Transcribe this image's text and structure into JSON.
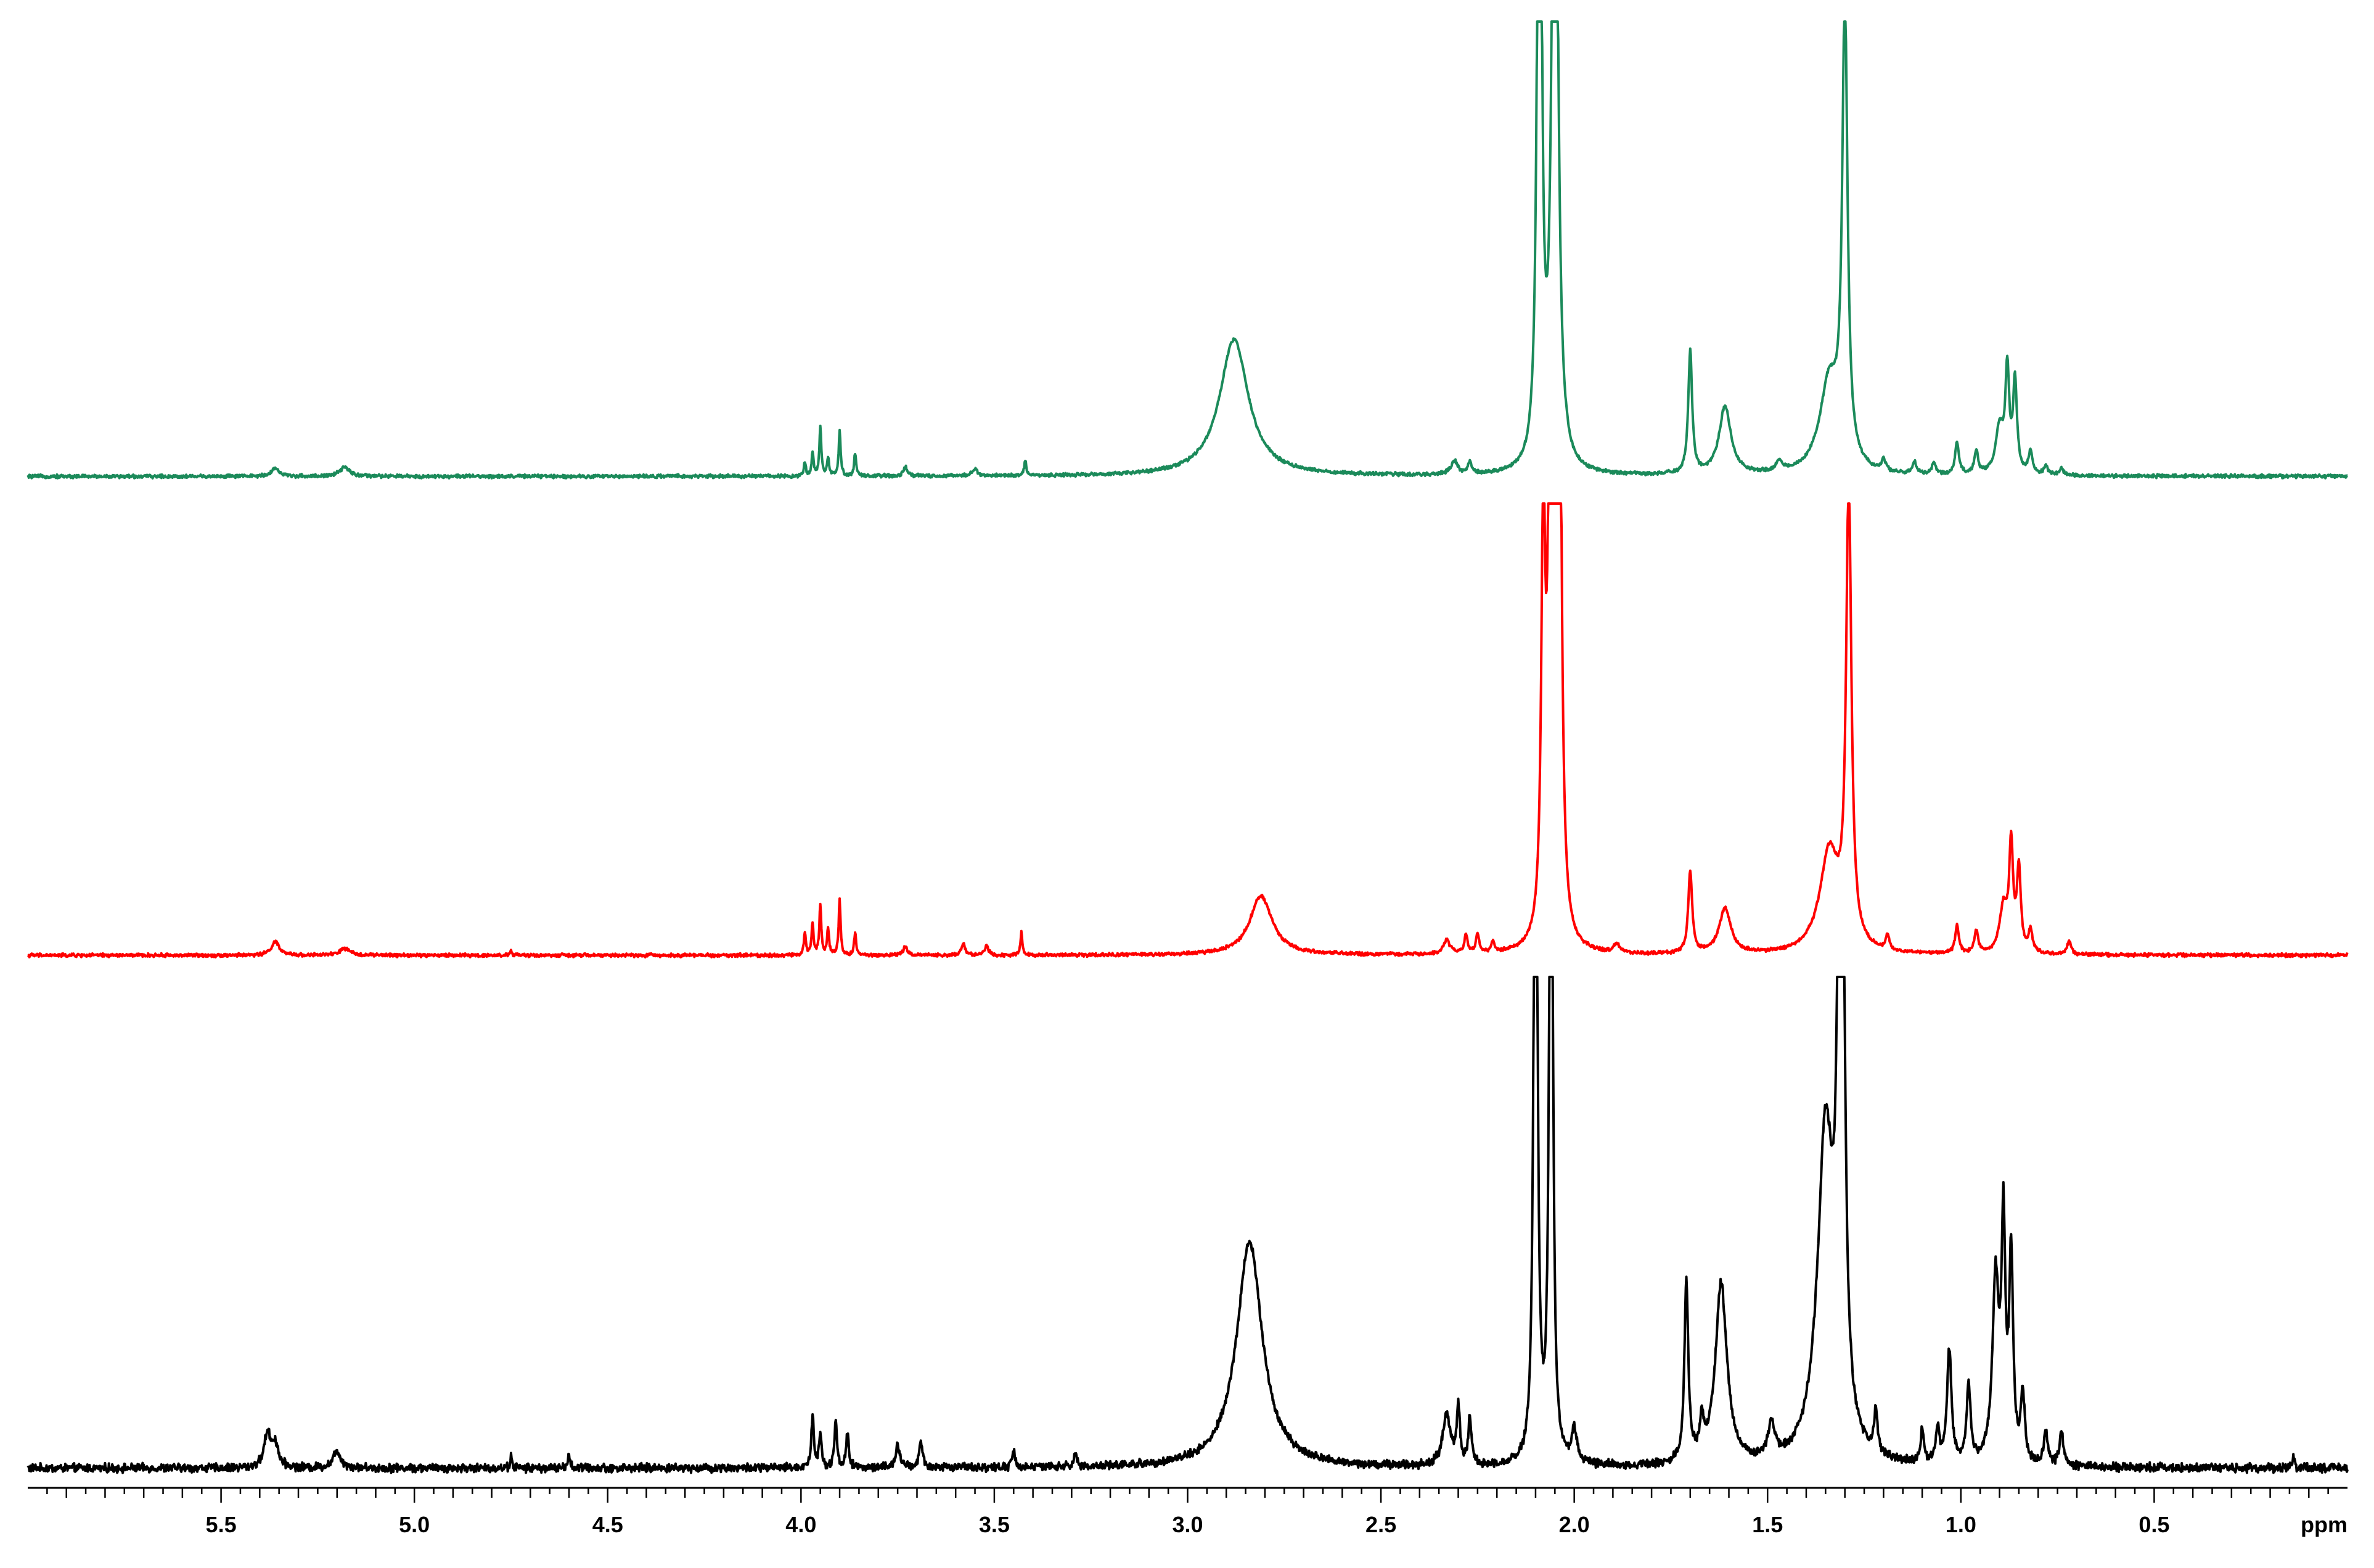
{
  "chart_data": {
    "type": "line",
    "title": "",
    "xlabel": "ppm",
    "ylabel": "",
    "x_reversed": true,
    "xlim": [
      6.0,
      0.0
    ],
    "x_ticks": [
      5.5,
      5.0,
      4.5,
      4.0,
      3.5,
      3.0,
      2.5,
      2.0,
      1.5,
      1.0,
      0.5
    ],
    "x_tick_labels": [
      "5.5",
      "5.0",
      "4.5",
      "4.0",
      "3.5",
      "3.0",
      "2.5",
      "2.0",
      "1.5",
      "1.0",
      "0.5"
    ],
    "minor_tick_step": 0.05,
    "grid": false,
    "legend": "none",
    "series": [
      {
        "color": "#1b8a5a",
        "stack_index": 2,
        "peaks": [
          {
            "ppm": 5.36,
            "height": 0.018,
            "width": 0.012
          },
          {
            "ppm": 5.18,
            "height": 0.02,
            "width": 0.015
          },
          {
            "ppm": 3.99,
            "height": 0.03,
            "width": 0.003
          },
          {
            "ppm": 3.97,
            "height": 0.05,
            "width": 0.003
          },
          {
            "ppm": 3.95,
            "height": 0.11,
            "width": 0.003
          },
          {
            "ppm": 3.93,
            "height": 0.04,
            "width": 0.003
          },
          {
            "ppm": 3.9,
            "height": 0.1,
            "width": 0.003
          },
          {
            "ppm": 3.86,
            "height": 0.05,
            "width": 0.003
          },
          {
            "ppm": 3.73,
            "height": 0.02,
            "width": 0.006
          },
          {
            "ppm": 3.55,
            "height": 0.015,
            "width": 0.008
          },
          {
            "ppm": 3.42,
            "height": 0.035,
            "width": 0.003
          },
          {
            "ppm": 2.88,
            "height": 0.3,
            "width": 0.045
          },
          {
            "ppm": 2.31,
            "height": 0.03,
            "width": 0.01
          },
          {
            "ppm": 2.27,
            "height": 0.025,
            "width": 0.006
          },
          {
            "ppm": 2.09,
            "height": 2.0,
            "width": 0.006
          },
          {
            "ppm": 2.05,
            "height": 2.0,
            "width": 0.008
          },
          {
            "ppm": 1.7,
            "height": 0.27,
            "width": 0.006
          },
          {
            "ppm": 1.61,
            "height": 0.15,
            "width": 0.018
          },
          {
            "ppm": 1.47,
            "height": 0.02,
            "width": 0.01
          },
          {
            "ppm": 1.34,
            "height": 0.2,
            "width": 0.03
          },
          {
            "ppm": 1.3,
            "height": 1.0,
            "width": 0.008
          },
          {
            "ppm": 1.2,
            "height": 0.025,
            "width": 0.006
          },
          {
            "ppm": 1.12,
            "height": 0.025,
            "width": 0.006
          },
          {
            "ppm": 1.07,
            "height": 0.025,
            "width": 0.006
          },
          {
            "ppm": 1.01,
            "height": 0.07,
            "width": 0.006
          },
          {
            "ppm": 0.96,
            "height": 0.05,
            "width": 0.006
          },
          {
            "ppm": 0.9,
            "height": 0.1,
            "width": 0.012
          },
          {
            "ppm": 0.88,
            "height": 0.22,
            "width": 0.006
          },
          {
            "ppm": 0.86,
            "height": 0.2,
            "width": 0.006
          },
          {
            "ppm": 0.82,
            "height": 0.05,
            "width": 0.006
          },
          {
            "ppm": 0.78,
            "height": 0.02,
            "width": 0.006
          },
          {
            "ppm": 0.74,
            "height": 0.015,
            "width": 0.006
          }
        ]
      },
      {
        "color": "#ff0000",
        "stack_index": 1,
        "peaks": [
          {
            "ppm": 5.36,
            "height": 0.03,
            "width": 0.012
          },
          {
            "ppm": 5.18,
            "height": 0.015,
            "width": 0.015
          },
          {
            "ppm": 4.75,
            "height": 0.01,
            "width": 0.003
          },
          {
            "ppm": 3.99,
            "height": 0.05,
            "width": 0.003
          },
          {
            "ppm": 3.97,
            "height": 0.07,
            "width": 0.003
          },
          {
            "ppm": 3.95,
            "height": 0.11,
            "width": 0.003
          },
          {
            "ppm": 3.93,
            "height": 0.06,
            "width": 0.003
          },
          {
            "ppm": 3.9,
            "height": 0.12,
            "width": 0.003
          },
          {
            "ppm": 3.86,
            "height": 0.05,
            "width": 0.003
          },
          {
            "ppm": 3.73,
            "height": 0.02,
            "width": 0.006
          },
          {
            "ppm": 3.58,
            "height": 0.025,
            "width": 0.006
          },
          {
            "ppm": 3.52,
            "height": 0.02,
            "width": 0.006
          },
          {
            "ppm": 3.43,
            "height": 0.05,
            "width": 0.003
          },
          {
            "ppm": 2.81,
            "height": 0.13,
            "width": 0.035
          },
          {
            "ppm": 2.33,
            "height": 0.03,
            "width": 0.01
          },
          {
            "ppm": 2.28,
            "height": 0.04,
            "width": 0.005
          },
          {
            "ppm": 2.25,
            "height": 0.04,
            "width": 0.005
          },
          {
            "ppm": 2.21,
            "height": 0.025,
            "width": 0.005
          },
          {
            "ppm": 2.08,
            "height": 0.9,
            "width": 0.006
          },
          {
            "ppm": 2.06,
            "height": 2.0,
            "width": 0.006
          },
          {
            "ppm": 2.04,
            "height": 2.0,
            "width": 0.006
          },
          {
            "ppm": 1.89,
            "height": 0.02,
            "width": 0.008
          },
          {
            "ppm": 1.7,
            "height": 0.18,
            "width": 0.006
          },
          {
            "ppm": 1.61,
            "height": 0.1,
            "width": 0.018
          },
          {
            "ppm": 1.34,
            "height": 0.22,
            "width": 0.03
          },
          {
            "ppm": 1.29,
            "height": 1.0,
            "width": 0.008
          },
          {
            "ppm": 1.19,
            "height": 0.03,
            "width": 0.006
          },
          {
            "ppm": 1.01,
            "height": 0.06,
            "width": 0.006
          },
          {
            "ppm": 0.96,
            "height": 0.05,
            "width": 0.006
          },
          {
            "ppm": 0.89,
            "height": 0.1,
            "width": 0.012
          },
          {
            "ppm": 0.87,
            "height": 0.23,
            "width": 0.006
          },
          {
            "ppm": 0.85,
            "height": 0.18,
            "width": 0.006
          },
          {
            "ppm": 0.82,
            "height": 0.05,
            "width": 0.006
          },
          {
            "ppm": 0.72,
            "height": 0.03,
            "width": 0.006
          }
        ]
      },
      {
        "color": "#000000",
        "stack_index": 0,
        "peaks": [
          {
            "ppm": 5.38,
            "height": 0.03,
            "width": 0.01
          },
          {
            "ppm": 5.36,
            "height": 0.02,
            "width": 0.01
          },
          {
            "ppm": 5.2,
            "height": 0.015,
            "width": 0.012
          },
          {
            "ppm": 4.75,
            "height": 0.01,
            "width": 0.003
          },
          {
            "ppm": 4.6,
            "height": 0.01,
            "width": 0.004
          },
          {
            "ppm": 3.97,
            "height": 0.045,
            "width": 0.004
          },
          {
            "ppm": 3.95,
            "height": 0.03,
            "width": 0.004
          },
          {
            "ppm": 3.91,
            "height": 0.04,
            "width": 0.004
          },
          {
            "ppm": 3.88,
            "height": 0.03,
            "width": 0.004
          },
          {
            "ppm": 3.75,
            "height": 0.02,
            "width": 0.006
          },
          {
            "ppm": 3.69,
            "height": 0.02,
            "width": 0.006
          },
          {
            "ppm": 3.45,
            "height": 0.015,
            "width": 0.004
          },
          {
            "ppm": 3.29,
            "height": 0.012,
            "width": 0.004
          },
          {
            "ppm": 2.84,
            "height": 0.2,
            "width": 0.04
          },
          {
            "ppm": 2.33,
            "height": 0.045,
            "width": 0.012
          },
          {
            "ppm": 2.3,
            "height": 0.05,
            "width": 0.005
          },
          {
            "ppm": 2.27,
            "height": 0.04,
            "width": 0.005
          },
          {
            "ppm": 2.1,
            "height": 0.82,
            "width": 0.005
          },
          {
            "ppm": 2.06,
            "height": 0.78,
            "width": 0.005
          },
          {
            "ppm": 2.0,
            "height": 0.03,
            "width": 0.008
          },
          {
            "ppm": 1.71,
            "height": 0.16,
            "width": 0.006
          },
          {
            "ppm": 1.67,
            "height": 0.03,
            "width": 0.006
          },
          {
            "ppm": 1.62,
            "height": 0.16,
            "width": 0.018
          },
          {
            "ppm": 1.49,
            "height": 0.03,
            "width": 0.01
          },
          {
            "ppm": 1.35,
            "height": 0.29,
            "width": 0.025
          },
          {
            "ppm": 1.31,
            "height": 1.0,
            "width": 0.007
          },
          {
            "ppm": 1.22,
            "height": 0.04,
            "width": 0.005
          },
          {
            "ppm": 1.1,
            "height": 0.03,
            "width": 0.005
          },
          {
            "ppm": 1.06,
            "height": 0.03,
            "width": 0.005
          },
          {
            "ppm": 1.03,
            "height": 0.1,
            "width": 0.007
          },
          {
            "ppm": 0.98,
            "height": 0.07,
            "width": 0.006
          },
          {
            "ppm": 0.91,
            "height": 0.16,
            "width": 0.01
          },
          {
            "ppm": 0.89,
            "height": 0.2,
            "width": 0.006
          },
          {
            "ppm": 0.87,
            "height": 0.18,
            "width": 0.006
          },
          {
            "ppm": 0.84,
            "height": 0.06,
            "width": 0.006
          },
          {
            "ppm": 0.78,
            "height": 0.03,
            "width": 0.006
          },
          {
            "ppm": 0.74,
            "height": 0.03,
            "width": 0.006
          },
          {
            "ppm": 0.14,
            "height": 0.008,
            "width": 0.003
          }
        ]
      }
    ]
  }
}
